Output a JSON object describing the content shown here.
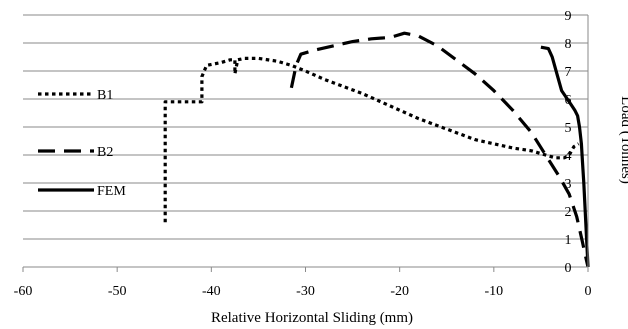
{
  "chart_data": {
    "type": "line",
    "title": "",
    "xlabel": "Relative Horizontal Sliding (mm)",
    "ylabel": "Load (Tonnes)",
    "xlim": [
      -60,
      0
    ],
    "ylim": [
      0,
      9
    ],
    "x_ticks": [
      "-60",
      "-50",
      "-40",
      "-30",
      "-20",
      "-10",
      "0"
    ],
    "y_ticks": [
      "0",
      "1",
      "2",
      "3",
      "4",
      "5",
      "6",
      "7",
      "8",
      "9"
    ],
    "grid": "horizontal",
    "legend_position": "left",
    "series": [
      {
        "name": "B1",
        "style": "dotted",
        "color": "#000000",
        "x": [
          -44.9,
          -44.9,
          -44.9,
          -43.0,
          -41.0,
          -41.0,
          -40.5,
          -39.0,
          -38.0,
          -37.5,
          -37.5,
          -37.2,
          -36.5,
          -35.0,
          -33.0,
          -31.5,
          -30.0,
          -28.0,
          -26.0,
          -24.0,
          -22.0,
          -20.0,
          -18.0,
          -16.0,
          -14.0,
          -12.0,
          -10.0,
          -8.0,
          -6.0,
          -4.5,
          -3.5,
          -2.5,
          -2.0,
          -1.5,
          -1.0
        ],
        "y": [
          1.6,
          4.0,
          5.9,
          5.9,
          5.9,
          6.8,
          7.2,
          7.3,
          7.4,
          7.4,
          6.9,
          7.4,
          7.45,
          7.45,
          7.35,
          7.2,
          7.0,
          6.7,
          6.45,
          6.2,
          5.9,
          5.6,
          5.3,
          5.05,
          4.8,
          4.55,
          4.4,
          4.25,
          4.15,
          4.0,
          3.9,
          3.9,
          4.0,
          4.3,
          4.4
        ]
      },
      {
        "name": "B2",
        "style": "dashed",
        "color": "#000000",
        "x": [
          -31.5,
          -31.0,
          -30.5,
          -29.0,
          -27.0,
          -25.0,
          -23.0,
          -21.0,
          -19.5,
          -18.0,
          -16.0,
          -14.0,
          -12.0,
          -10.0,
          -8.0,
          -6.0,
          -4.5,
          -3.0,
          -2.0,
          -1.5,
          -1.2,
          -1.0,
          -0.8,
          -0.6,
          -0.4,
          -0.2,
          0.0
        ],
        "y": [
          6.4,
          7.2,
          7.6,
          7.75,
          7.9,
          8.05,
          8.15,
          8.2,
          8.35,
          8.25,
          7.9,
          7.4,
          6.9,
          6.3,
          5.6,
          4.8,
          4.0,
          3.2,
          2.6,
          2.1,
          1.8,
          1.5,
          1.2,
          0.9,
          0.6,
          0.3,
          0.0
        ]
      },
      {
        "name": "FEM",
        "style": "solid",
        "color": "#000000",
        "x": [
          -5.0,
          -4.2,
          -3.8,
          -3.3,
          -2.8,
          -2.2,
          -1.8,
          -1.4,
          -1.1,
          -0.9,
          -0.7,
          -0.6,
          -0.45,
          -0.3,
          -0.15,
          0.0
        ],
        "y": [
          7.85,
          7.8,
          7.5,
          6.9,
          6.3,
          6.0,
          5.8,
          5.6,
          5.4,
          5.0,
          4.4,
          3.8,
          3.0,
          2.0,
          1.0,
          0.0
        ]
      }
    ]
  }
}
